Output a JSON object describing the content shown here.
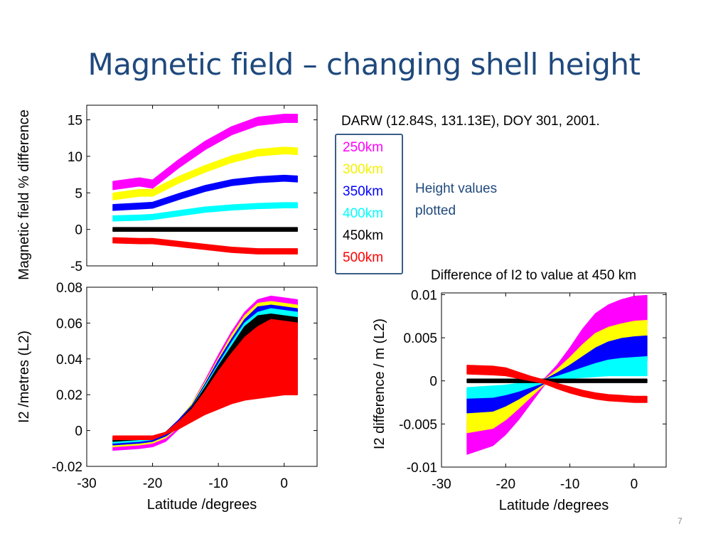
{
  "slide": {
    "title": "Magnetic field – changing shell height",
    "station_info": "DARW (12.84S, 131.13E), DOY 301, 2001.",
    "height_note_line1": "Height values",
    "height_note_line2": "plotted",
    "diff_caption": "Difference of I2 to value at 450 km",
    "page_number": "7"
  },
  "legend": [
    {
      "label": "250km",
      "color": "#ff00ff"
    },
    {
      "label": "300km",
      "color": "#ffff00"
    },
    {
      "label": "350km",
      "color": "#0000ff"
    },
    {
      "label": "400km",
      "color": "#00ffff"
    },
    {
      "label": "450km",
      "color": "#000000"
    },
    {
      "label": "500km",
      "color": "#ff0000"
    }
  ],
  "chart_data": [
    {
      "type": "line",
      "id": "mag-field",
      "ylabel": "Magnetic field % difference",
      "xlabel": "",
      "xlim": [
        -30,
        5
      ],
      "ylim": [
        -5,
        17
      ],
      "xticks": [],
      "yticks": [
        -5,
        0,
        5,
        10,
        15
      ],
      "x": [
        -26,
        -22,
        -20,
        -16,
        -12,
        -8,
        -4,
        0,
        2
      ],
      "series": [
        {
          "name": "250km",
          "color": "#ff00ff",
          "values": [
            6,
            6.5,
            6.2,
            9,
            11.5,
            13.5,
            14.8,
            15.2,
            15.2
          ],
          "band": 1.1
        },
        {
          "name": "300km",
          "color": "#ffff00",
          "values": [
            4.5,
            5,
            5,
            6.8,
            8.3,
            9.6,
            10.5,
            10.8,
            10.7
          ],
          "band": 0.9
        },
        {
          "name": "350km",
          "color": "#0000ff",
          "values": [
            3,
            3.2,
            3.3,
            4.5,
            5.6,
            6.4,
            6.8,
            7,
            6.9
          ],
          "band": 0.8
        },
        {
          "name": "400km",
          "color": "#00ffff",
          "values": [
            1.5,
            1.6,
            1.7,
            2.2,
            2.7,
            3,
            3.2,
            3.3,
            3.3
          ],
          "band": 0.7
        },
        {
          "name": "450km",
          "color": "#000000",
          "values": [
            0,
            0,
            0,
            0,
            0,
            0,
            0,
            0,
            0
          ],
          "band": 0.5
        },
        {
          "name": "500km",
          "color": "#ff0000",
          "values": [
            -1.5,
            -1.6,
            -1.6,
            -2,
            -2.4,
            -2.8,
            -3,
            -3,
            -3
          ],
          "band": 0.7
        }
      ]
    },
    {
      "type": "area",
      "id": "i2-metres",
      "ylabel": "I2 /metres (L2)",
      "xlabel": "Latitude /degrees",
      "xlim": [
        -30,
        5
      ],
      "ylim": [
        -0.02,
        0.08
      ],
      "xticks": [
        -30,
        -20,
        -10,
        0
      ],
      "yticks": [
        -0.02,
        0,
        0.02,
        0.04,
        0.06,
        0.08
      ],
      "x": [
        -26,
        -22,
        -20,
        -18,
        -16,
        -14,
        -12,
        -10,
        -8,
        -6,
        -4,
        -2,
        0,
        2
      ],
      "series": [
        {
          "name": "250km",
          "color": "#ff00ff",
          "upper": [
            -0.008,
            -0.006,
            -0.005,
            -0.001,
            0.006,
            0.015,
            0.028,
            0.042,
            0.055,
            0.066,
            0.073,
            0.075,
            0.074,
            0.073
          ],
          "lower": [
            -0.011,
            -0.01,
            -0.009,
            -0.006,
            0.001,
            0.009,
            0.02,
            0.032,
            0.044,
            0.054,
            0.062,
            0.066,
            0.067,
            0.066
          ]
        },
        {
          "name": "300km",
          "color": "#ffff00",
          "upper": [
            -0.007,
            -0.006,
            -0.005,
            -0.001,
            0.006,
            0.015,
            0.027,
            0.04,
            0.053,
            0.064,
            0.071,
            0.072,
            0.071,
            0.07
          ],
          "lower": [
            -0.009,
            -0.008,
            -0.007,
            -0.004,
            0.002,
            0.01,
            0.02,
            0.032,
            0.043,
            0.052,
            0.058,
            0.062,
            0.063,
            0.062
          ]
        },
        {
          "name": "350km",
          "color": "#0000ff",
          "upper": [
            -0.006,
            -0.005,
            -0.005,
            -0.001,
            0.006,
            0.014,
            0.026,
            0.039,
            0.051,
            0.062,
            0.069,
            0.07,
            0.069,
            0.068
          ],
          "lower": [
            -0.008,
            -0.007,
            -0.006,
            -0.003,
            0.002,
            0.009,
            0.019,
            0.03,
            0.041,
            0.05,
            0.055,
            0.059,
            0.06,
            0.059
          ]
        },
        {
          "name": "400km",
          "color": "#00ffff",
          "upper": [
            -0.005,
            -0.004,
            -0.004,
            -0.001,
            0.005,
            0.013,
            0.025,
            0.037,
            0.049,
            0.06,
            0.066,
            0.068,
            0.067,
            0.066
          ],
          "lower": [
            -0.007,
            -0.006,
            -0.005,
            -0.002,
            0.002,
            0.009,
            0.018,
            0.028,
            0.038,
            0.046,
            0.051,
            0.055,
            0.056,
            0.055
          ]
        },
        {
          "name": "450km",
          "color": "#000000",
          "upper": [
            -0.004,
            -0.004,
            -0.004,
            -0.001,
            0.005,
            0.013,
            0.024,
            0.036,
            0.047,
            0.058,
            0.064,
            0.065,
            0.064,
            0.063
          ],
          "lower": [
            -0.006,
            -0.005,
            -0.005,
            -0.002,
            0.002,
            0.008,
            0.017,
            0.026,
            0.035,
            0.042,
            0.047,
            0.051,
            0.052,
            0.051
          ]
        },
        {
          "name": "500km",
          "color": "#ff0000",
          "upper": [
            -0.003,
            -0.003,
            -0.003,
            -0.001,
            0.005,
            0.012,
            0.022,
            0.033,
            0.043,
            0.052,
            0.058,
            0.062,
            0.061,
            0.06
          ],
          "lower": [
            -0.005,
            -0.005,
            -0.005,
            -0.002,
            0.001,
            0.005,
            0.009,
            0.012,
            0.015,
            0.017,
            0.018,
            0.019,
            0.02,
            0.02
          ]
        }
      ]
    },
    {
      "type": "area",
      "id": "i2-difference",
      "ylabel": "I2 difference / m (L2)",
      "xlabel": "Latitude /degrees",
      "xlim": [
        -30,
        5
      ],
      "ylim": [
        -0.01,
        0.0102
      ],
      "xticks": [
        -30,
        -20,
        -10,
        0
      ],
      "yticks": [
        -0.01,
        -0.005,
        0,
        0.005,
        0.01
      ],
      "ytick_labels": [
        "-0.01",
        "-0.005",
        "0",
        "0.005",
        "0.01"
      ],
      "x": [
        -26,
        -22,
        -20,
        -18,
        -16,
        -14,
        -12,
        -10,
        -8,
        -6,
        -4,
        -2,
        0,
        2
      ],
      "series": [
        {
          "name": "250km",
          "color": "#ff00ff",
          "upper": [
            -0.0045,
            -0.0035,
            -0.0028,
            -0.0018,
            -0.0008,
            0.0002,
            0.0018,
            0.0038,
            0.006,
            0.0078,
            0.0088,
            0.0094,
            0.0098,
            0.0099
          ],
          "lower": [
            -0.0085,
            -0.0075,
            -0.0062,
            -0.0045,
            -0.0025,
            -0.0005,
            0.0008,
            0.0018,
            0.003,
            0.0042,
            0.0052,
            0.006,
            0.0065,
            0.0066
          ]
        },
        {
          "name": "300km",
          "color": "#ffff00",
          "upper": [
            -0.0032,
            -0.0025,
            -0.002,
            -0.0013,
            -0.0006,
            0.0001,
            0.0013,
            0.0027,
            0.0042,
            0.0055,
            0.0062,
            0.0066,
            0.0069,
            0.007
          ],
          "lower": [
            -0.006,
            -0.0055,
            -0.0045,
            -0.0032,
            -0.0018,
            -0.0004,
            0.0005,
            0.0012,
            0.002,
            0.0028,
            0.0034,
            0.0038,
            0.004,
            0.004
          ]
        },
        {
          "name": "350km",
          "color": "#0000ff",
          "upper": [
            -0.002,
            -0.0015,
            -0.0012,
            -0.0008,
            -0.0004,
            0.0001,
            0.0009,
            0.0018,
            0.0028,
            0.0038,
            0.0045,
            0.0049,
            0.0051,
            0.0052
          ],
          "lower": [
            -0.0037,
            -0.0035,
            -0.0029,
            -0.0021,
            -0.0012,
            -0.0003,
            0.0003,
            0.0007,
            0.0012,
            0.0017,
            0.002,
            0.0022,
            0.0023,
            0.0023
          ]
        },
        {
          "name": "400km",
          "color": "#00ffff",
          "upper": [
            -0.0008,
            -0.0006,
            -0.0005,
            -0.0003,
            -0.0001,
            0.0001,
            0.0005,
            0.001,
            0.0015,
            0.002,
            0.0024,
            0.0026,
            0.0027,
            0.0028
          ],
          "lower": [
            -0.002,
            -0.0019,
            -0.0016,
            -0.0012,
            -0.0007,
            -0.0002,
            0.0001,
            0.0003,
            0.0004,
            0.0005,
            0.0006,
            0.0006,
            0.0006,
            0.0006
          ]
        },
        {
          "name": "450km",
          "color": "#000000",
          "upper": [
            0.0002,
            0.0002,
            0.0002,
            0.0002,
            0.0002,
            0.0002,
            0.0002,
            0.0002,
            0.0002,
            0.0002,
            0.0002,
            0.0002,
            0.0002,
            0.0002
          ],
          "lower": [
            -0.0002,
            -0.0002,
            -0.0002,
            -0.0002,
            -0.0002,
            -0.0002,
            -0.0002,
            -0.0002,
            -0.0002,
            -0.0002,
            -0.0002,
            -0.0002,
            -0.0002,
            -0.0002
          ]
        },
        {
          "name": "500km",
          "color": "#ff0000",
          "upper": [
            0.0018,
            0.0017,
            0.0015,
            0.001,
            0.0005,
            0.0001,
            -0.0003,
            -0.0007,
            -0.0011,
            -0.0014,
            -0.0016,
            -0.0017,
            -0.0018,
            -0.0018
          ],
          "lower": [
            0.0008,
            0.0007,
            0.0006,
            0.0003,
            0.0,
            -0.0003,
            -0.0009,
            -0.0014,
            -0.0018,
            -0.0021,
            -0.0023,
            -0.0024,
            -0.0025,
            -0.0025
          ]
        }
      ]
    }
  ]
}
